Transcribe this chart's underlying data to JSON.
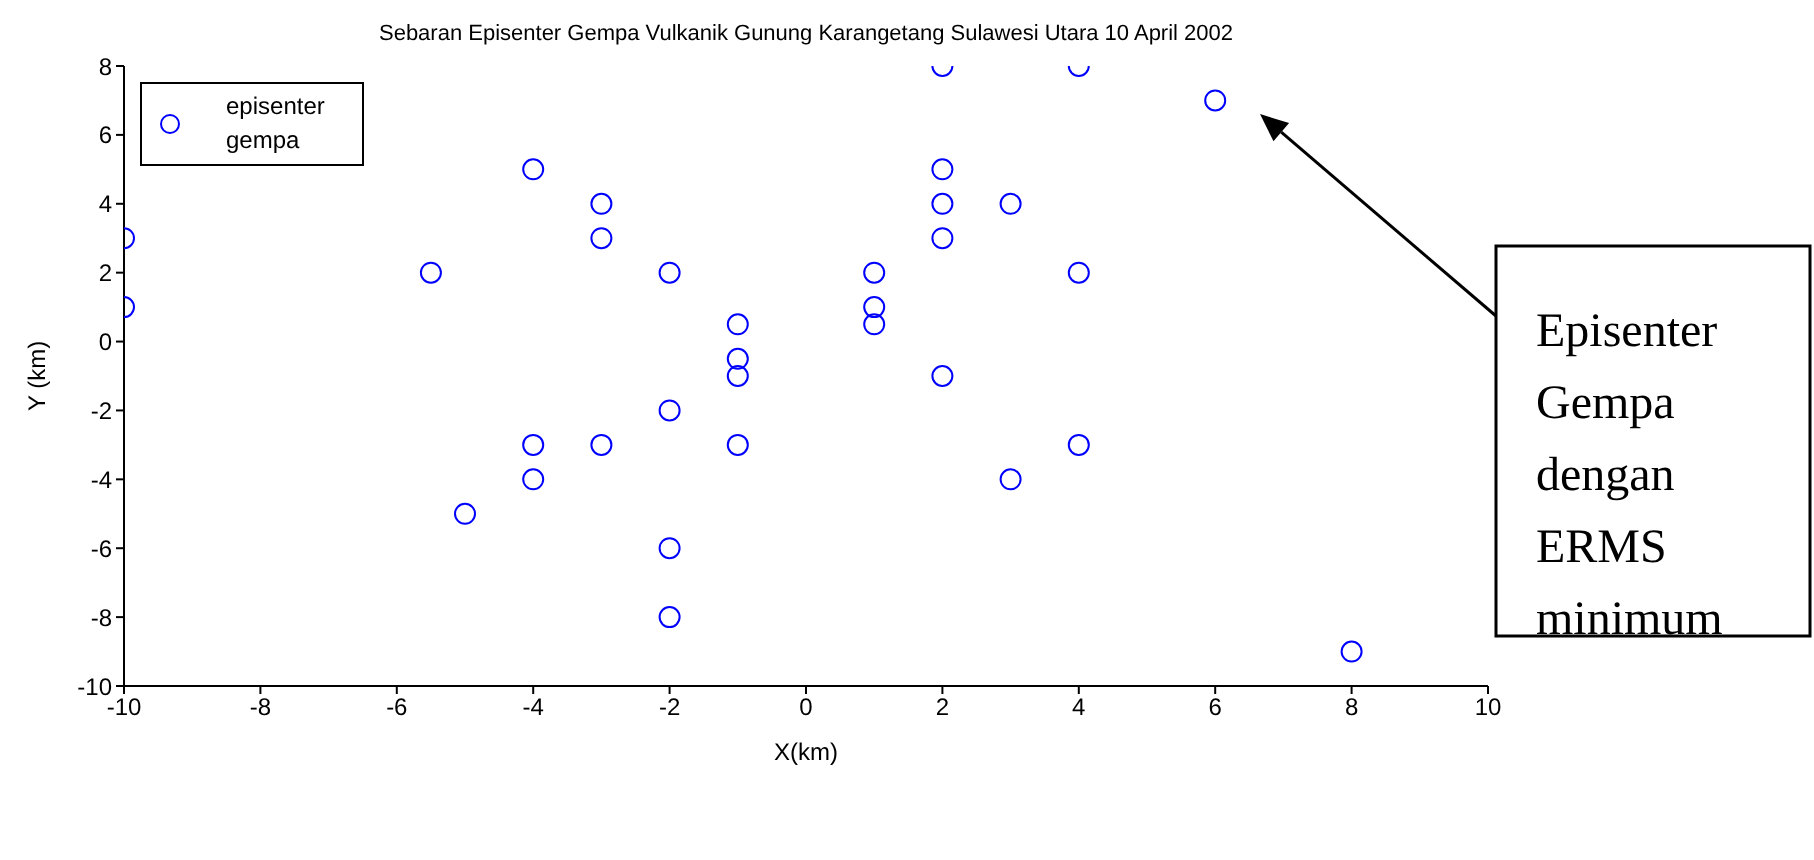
{
  "chart_data": {
    "type": "scatter",
    "title": "Sebaran Episenter Gempa Vulkanik Gunung Karangetang Sulawesi Utara 10 April 2002",
    "xlabel": "X(km)",
    "ylabel": "Y (km)",
    "x": [
      -10,
      -10,
      -4,
      -3,
      -3,
      -5.5,
      -2,
      -1,
      -1,
      -1,
      -1,
      -2,
      -3,
      -4,
      -4,
      -5,
      -2,
      -2,
      1,
      1,
      1,
      2,
      2,
      2,
      2,
      2,
      3,
      3,
      4,
      4,
      4,
      6,
      8
    ],
    "series": [
      {
        "name": "episenter gempa",
        "color": "#0000ff",
        "values": [
          3,
          1,
          5,
          4,
          3,
          2,
          2,
          0.5,
          -0.5,
          -1,
          -3,
          -2,
          -3,
          -3,
          -4,
          -5,
          -6,
          -8,
          2,
          1,
          0.5,
          8,
          5,
          4,
          3,
          -1,
          4,
          -4,
          8,
          2,
          -3,
          7,
          -9
        ]
      }
    ],
    "xlim": [
      -10,
      10
    ],
    "xticks": [
      -10,
      -8,
      -6,
      -4,
      -2,
      0,
      2,
      4,
      6,
      8,
      10
    ],
    "ylim": [
      -10,
      8
    ],
    "yticks": [
      -10,
      -8,
      -6,
      -4,
      -2,
      0,
      2,
      4,
      6,
      8
    ],
    "grid": false,
    "legend": "top left",
    "marker": "circle",
    "annotations": [
      "Episenter Gempa dengan ERMS minimum"
    ]
  }
}
